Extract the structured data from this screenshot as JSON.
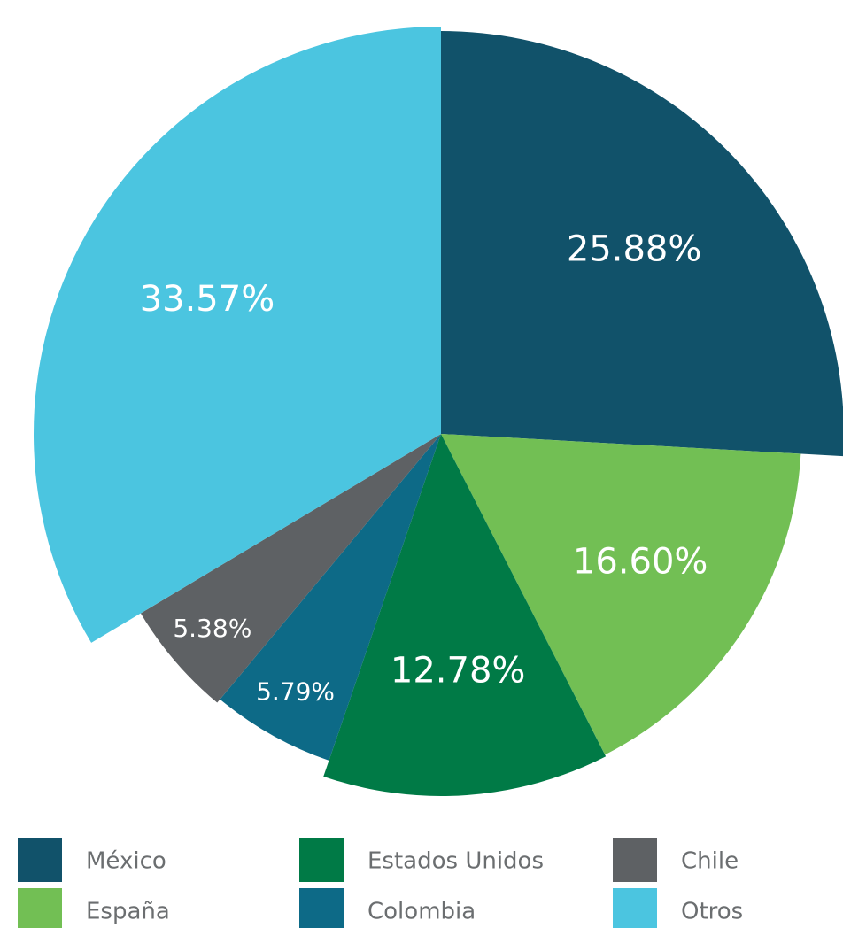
{
  "chart_data": {
    "type": "pie",
    "categories": [
      "México",
      "España",
      "Estados Unidos",
      "Colombia",
      "Chile",
      "Otros"
    ],
    "values": [
      25.88,
      16.6,
      12.78,
      5.79,
      5.38,
      33.57
    ],
    "value_labels": [
      "25.88%",
      "16.60%",
      "12.78%",
      "5.79%",
      "5.38%",
      "33.57%"
    ],
    "colors": [
      "#11526a",
      "#72bf54",
      "#007a46",
      "#0d6a87",
      "#5e6164",
      "#4bc5e0"
    ],
    "legend": "bottom"
  }
}
